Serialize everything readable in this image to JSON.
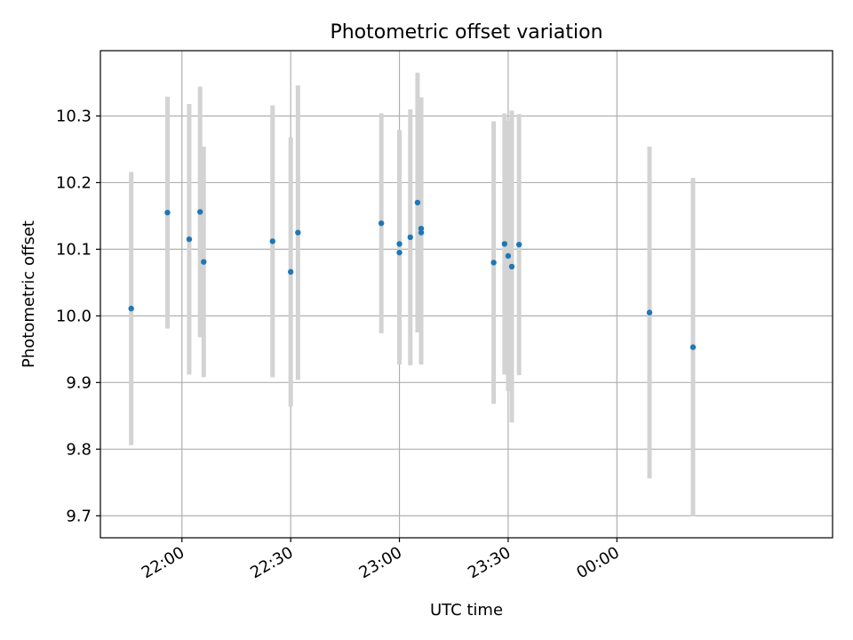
{
  "chart_data": {
    "type": "scatter",
    "title": "Photometric offset variation",
    "xlabel": "UTC time",
    "ylabel": "Photometric offset",
    "grid": true,
    "xlim": [
      "21:37:30",
      "00:59:30"
    ],
    "ylim": [
      9.667,
      10.398
    ],
    "xticks": [
      "22:00",
      "22:30",
      "23:00",
      "23:30",
      "00:00"
    ],
    "yticks": [
      9.7,
      9.8,
      9.9,
      10.0,
      10.1,
      10.2,
      10.3
    ],
    "colors": {
      "points": "#1f77b4",
      "errorbars": "#d3d3d3"
    },
    "points": [
      {
        "x": "21:46",
        "y": 10.011,
        "err": 0.205
      },
      {
        "x": "21:56",
        "y": 10.155,
        "err": 0.174
      },
      {
        "x": "22:02",
        "y": 10.115,
        "err": 0.203
      },
      {
        "x": "22:05",
        "y": 10.156,
        "err": 0.188
      },
      {
        "x": "22:06",
        "y": 10.081,
        "err": 0.173
      },
      {
        "x": "22:25",
        "y": 10.112,
        "err": 0.204
      },
      {
        "x": "22:30",
        "y": 10.066,
        "err": 0.202
      },
      {
        "x": "22:32",
        "y": 10.125,
        "err": 0.221
      },
      {
        "x": "22:55",
        "y": 10.139,
        "err": 0.165
      },
      {
        "x": "23:00",
        "y": 10.108,
        "err": 0.171
      },
      {
        "x": "23:00",
        "y": 10.095,
        "err": 0.168
      },
      {
        "x": "23:03",
        "y": 10.118,
        "err": 0.192
      },
      {
        "x": "23:05",
        "y": 10.17,
        "err": 0.195
      },
      {
        "x": "23:06",
        "y": 10.125,
        "err": 0.198
      },
      {
        "x": "23:06",
        "y": 10.131,
        "err": 0.197
      },
      {
        "x": "23:26",
        "y": 10.08,
        "err": 0.212
      },
      {
        "x": "23:29",
        "y": 10.108,
        "err": 0.196
      },
      {
        "x": "23:30",
        "y": 10.09,
        "err": 0.203
      },
      {
        "x": "23:31",
        "y": 10.074,
        "err": 0.234
      },
      {
        "x": "23:33",
        "y": 10.107,
        "err": 0.196
      },
      {
        "x": "00:09",
        "y": 10.005,
        "err": 0.249
      },
      {
        "x": "00:21",
        "y": 9.953,
        "err": 0.254
      }
    ]
  }
}
